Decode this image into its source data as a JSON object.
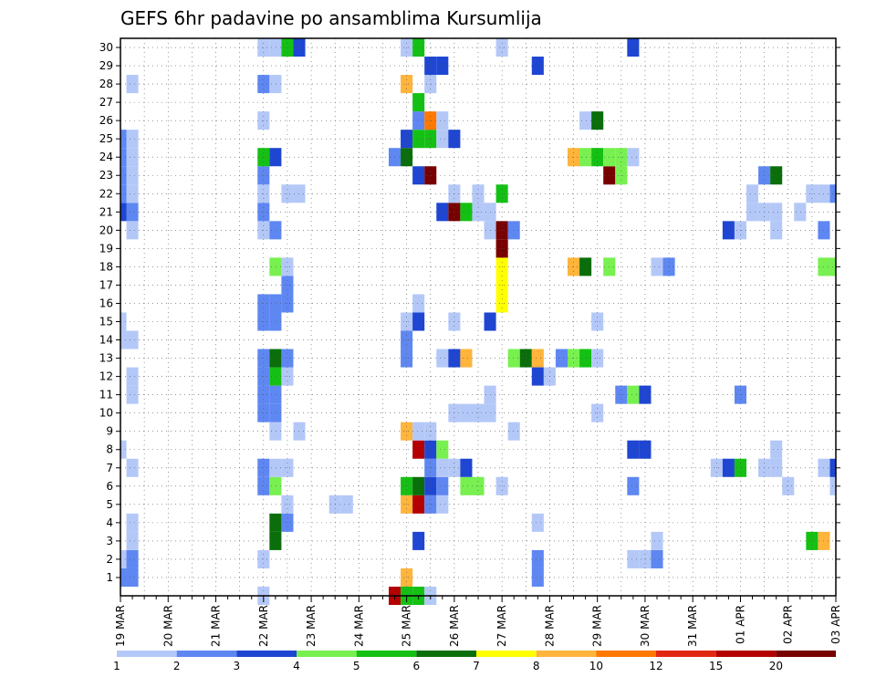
{
  "chart_data": {
    "type": "heatmap",
    "title": "GEFS 6hr padavine po ansamblima Kursumlija",
    "xlabel": "",
    "ylabel": "",
    "x_dates": [
      "19 MAR",
      "20 MAR",
      "21 MAR",
      "22 MAR",
      "23 MAR",
      "24 MAR",
      "25 MAR",
      "26 MAR",
      "27 MAR",
      "28 MAR",
      "29 MAR",
      "30 MAR",
      "31 MAR",
      "01 APR",
      "02 APR",
      "03 APR"
    ],
    "y_ticks": [
      1,
      2,
      3,
      4,
      5,
      6,
      7,
      8,
      9,
      10,
      11,
      12,
      13,
      14,
      15,
      16,
      17,
      18,
      19,
      20,
      21,
      22,
      23,
      24,
      25,
      26,
      27,
      28,
      29,
      30
    ],
    "steps_per_day": 4,
    "num_steps": 61,
    "legend_thresholds": [
      "1",
      "2",
      "3",
      "4",
      "5",
      "6",
      "7",
      "8",
      "10",
      "12",
      "15",
      "20"
    ],
    "legend_colors": [
      "#b4c8f8",
      "#5f87f2",
      "#1e46d2",
      "#78f050",
      "#14c014",
      "#0a6e0a",
      "#ffff00",
      "#ffb43c",
      "#ff7800",
      "#e12814",
      "#b40000",
      "#780000"
    ],
    "grid": true,
    "cells": [
      [
        0,
        1,
        2
      ],
      [
        1,
        1,
        2
      ],
      [
        1,
        2,
        2
      ],
      [
        1,
        3,
        1
      ],
      [
        1,
        4,
        1
      ],
      [
        1,
        7,
        1
      ],
      [
        1,
        11,
        1
      ],
      [
        1,
        12,
        1
      ],
      [
        1,
        14,
        1
      ],
      [
        1,
        20,
        1
      ],
      [
        1,
        21,
        2
      ],
      [
        1,
        22,
        1
      ],
      [
        1,
        23,
        1
      ],
      [
        1,
        24,
        1
      ],
      [
        1,
        25,
        1
      ],
      [
        1,
        28,
        1
      ],
      [
        0,
        2,
        1
      ],
      [
        0,
        8,
        1
      ],
      [
        0,
        14,
        1
      ],
      [
        0,
        15,
        1
      ],
      [
        0,
        21,
        3
      ],
      [
        0,
        22,
        2
      ],
      [
        0,
        23,
        2
      ],
      [
        0,
        24,
        2
      ],
      [
        0,
        25,
        2
      ],
      [
        12,
        0,
        1
      ],
      [
        12,
        2,
        1
      ],
      [
        12,
        6,
        2
      ],
      [
        12,
        7,
        2
      ],
      [
        12,
        10,
        2
      ],
      [
        12,
        11,
        2
      ],
      [
        12,
        12,
        2
      ],
      [
        12,
        13,
        2
      ],
      [
        12,
        15,
        2
      ],
      [
        12,
        16,
        2
      ],
      [
        12,
        20,
        1
      ],
      [
        12,
        21,
        2
      ],
      [
        12,
        22,
        1
      ],
      [
        12,
        23,
        2
      ],
      [
        12,
        24,
        5
      ],
      [
        12,
        26,
        1
      ],
      [
        12,
        28,
        2
      ],
      [
        12,
        30,
        1
      ],
      [
        13,
        3,
        6
      ],
      [
        13,
        4,
        6
      ],
      [
        13,
        6,
        4
      ],
      [
        13,
        7,
        1
      ],
      [
        13,
        9,
        1
      ],
      [
        13,
        10,
        2
      ],
      [
        13,
        11,
        2
      ],
      [
        13,
        12,
        5
      ],
      [
        13,
        13,
        6
      ],
      [
        13,
        15,
        2
      ],
      [
        13,
        16,
        2
      ],
      [
        13,
        18,
        4
      ],
      [
        13,
        20,
        2
      ],
      [
        13,
        24,
        3
      ],
      [
        13,
        28,
        1
      ],
      [
        13,
        30,
        1
      ],
      [
        14,
        4,
        2
      ],
      [
        14,
        5,
        1
      ],
      [
        14,
        7,
        1
      ],
      [
        14,
        12,
        1
      ],
      [
        14,
        13,
        2
      ],
      [
        14,
        16,
        2
      ],
      [
        14,
        17,
        2
      ],
      [
        14,
        18,
        1
      ],
      [
        14,
        22,
        1
      ],
      [
        14,
        30,
        5
      ],
      [
        15,
        30,
        3
      ],
      [
        15,
        22,
        1
      ],
      [
        15,
        9,
        1
      ],
      [
        18,
        5,
        1
      ],
      [
        19,
        5,
        1
      ],
      [
        23,
        0,
        11
      ],
      [
        23,
        24,
        2
      ],
      [
        24,
        0,
        5
      ],
      [
        24,
        1,
        8
      ],
      [
        24,
        5,
        8
      ],
      [
        24,
        6,
        5
      ],
      [
        24,
        9,
        8
      ],
      [
        24,
        13,
        2
      ],
      [
        24,
        14,
        2
      ],
      [
        24,
        15,
        1
      ],
      [
        24,
        24,
        6
      ],
      [
        24,
        25,
        3
      ],
      [
        24,
        28,
        8
      ],
      [
        24,
        30,
        1
      ],
      [
        25,
        0,
        5
      ],
      [
        25,
        3,
        3
      ],
      [
        25,
        5,
        11
      ],
      [
        25,
        6,
        6
      ],
      [
        25,
        8,
        11
      ],
      [
        25,
        9,
        1
      ],
      [
        25,
        15,
        3
      ],
      [
        25,
        16,
        1
      ],
      [
        25,
        23,
        3
      ],
      [
        25,
        25,
        5
      ],
      [
        25,
        26,
        2
      ],
      [
        25,
        27,
        5
      ],
      [
        25,
        30,
        5
      ],
      [
        26,
        0,
        1
      ],
      [
        26,
        5,
        2
      ],
      [
        26,
        6,
        3
      ],
      [
        26,
        7,
        2
      ],
      [
        26,
        8,
        3
      ],
      [
        26,
        9,
        1
      ],
      [
        26,
        23,
        12
      ],
      [
        26,
        25,
        5
      ],
      [
        26,
        26,
        9
      ],
      [
        26,
        28,
        1
      ],
      [
        26,
        29,
        3
      ],
      [
        27,
        5,
        1
      ],
      [
        27,
        6,
        2
      ],
      [
        27,
        7,
        1
      ],
      [
        27,
        8,
        4
      ],
      [
        27,
        13,
        1
      ],
      [
        27,
        21,
        3
      ],
      [
        27,
        25,
        1
      ],
      [
        27,
        26,
        1
      ],
      [
        27,
        29,
        3
      ],
      [
        28,
        7,
        1
      ],
      [
        28,
        10,
        1
      ],
      [
        28,
        13,
        3
      ],
      [
        28,
        15,
        1
      ],
      [
        28,
        21,
        12
      ],
      [
        28,
        22,
        1
      ],
      [
        28,
        25,
        3
      ],
      [
        29,
        6,
        4
      ],
      [
        29,
        7,
        3
      ],
      [
        29,
        10,
        1
      ],
      [
        29,
        13,
        8
      ],
      [
        29,
        21,
        5
      ],
      [
        30,
        6,
        4
      ],
      [
        30,
        10,
        1
      ],
      [
        30,
        21,
        1
      ],
      [
        30,
        22,
        1
      ],
      [
        31,
        10,
        1
      ],
      [
        31,
        11,
        1
      ],
      [
        31,
        15,
        3
      ],
      [
        31,
        20,
        1
      ],
      [
        31,
        21,
        1
      ],
      [
        32,
        6,
        1
      ],
      [
        32,
        16,
        7
      ],
      [
        32,
        17,
        7
      ],
      [
        32,
        18,
        7
      ],
      [
        32,
        19,
        12
      ],
      [
        32,
        20,
        12
      ],
      [
        32,
        22,
        5
      ],
      [
        32,
        30,
        1
      ],
      [
        33,
        9,
        1
      ],
      [
        33,
        13,
        4
      ],
      [
        33,
        20,
        2
      ],
      [
        34,
        13,
        6
      ],
      [
        35,
        13,
        8
      ],
      [
        35,
        1,
        2
      ],
      [
        35,
        2,
        2
      ],
      [
        35,
        4,
        1
      ],
      [
        35,
        12,
        3
      ],
      [
        35,
        29,
        3
      ],
      [
        36,
        12,
        1
      ],
      [
        37,
        13,
        2
      ],
      [
        38,
        13,
        4
      ],
      [
        39,
        13,
        5
      ],
      [
        40,
        13,
        1
      ],
      [
        38,
        18,
        8
      ],
      [
        38,
        24,
        8
      ],
      [
        39,
        18,
        6
      ],
      [
        39,
        24,
        4
      ],
      [
        39,
        26,
        1
      ],
      [
        40,
        10,
        1
      ],
      [
        40,
        15,
        1
      ],
      [
        40,
        24,
        5
      ],
      [
        40,
        26,
        6
      ],
      [
        41,
        18,
        4
      ],
      [
        41,
        23,
        12
      ],
      [
        41,
        24,
        4
      ],
      [
        42,
        11,
        2
      ],
      [
        42,
        23,
        4
      ],
      [
        42,
        24,
        4
      ],
      [
        43,
        11,
        4
      ],
      [
        43,
        24,
        1
      ],
      [
        43,
        2,
        1
      ],
      [
        43,
        6,
        2
      ],
      [
        43,
        8,
        3
      ],
      [
        43,
        30,
        3
      ],
      [
        44,
        2,
        1
      ],
      [
        44,
        8,
        3
      ],
      [
        44,
        11,
        3
      ],
      [
        45,
        2,
        2
      ],
      [
        45,
        3,
        1
      ],
      [
        45,
        18,
        1
      ],
      [
        46,
        18,
        2
      ],
      [
        50,
        7,
        1
      ],
      [
        51,
        7,
        3
      ],
      [
        51,
        20,
        3
      ],
      [
        52,
        7,
        5
      ],
      [
        52,
        11,
        2
      ],
      [
        52,
        20,
        1
      ],
      [
        53,
        21,
        1
      ],
      [
        53,
        22,
        1
      ],
      [
        54,
        7,
        1
      ],
      [
        54,
        21,
        1
      ],
      [
        54,
        23,
        2
      ],
      [
        55,
        7,
        1
      ],
      [
        55,
        8,
        1
      ],
      [
        55,
        20,
        1
      ],
      [
        55,
        21,
        1
      ],
      [
        55,
        23,
        6
      ],
      [
        56,
        6,
        1
      ],
      [
        57,
        21,
        1
      ],
      [
        58,
        3,
        5
      ],
      [
        58,
        22,
        1
      ],
      [
        59,
        3,
        8
      ],
      [
        59,
        7,
        1
      ],
      [
        59,
        18,
        4
      ],
      [
        59,
        20,
        2
      ],
      [
        59,
        22,
        1
      ],
      [
        60,
        6,
        1
      ],
      [
        60,
        7,
        3
      ],
      [
        60,
        18,
        4
      ],
      [
        60,
        22,
        2
      ],
      [
        61,
        18,
        2
      ],
      [
        61,
        19,
        5
      ],
      [
        61,
        24,
        1
      ]
    ]
  }
}
